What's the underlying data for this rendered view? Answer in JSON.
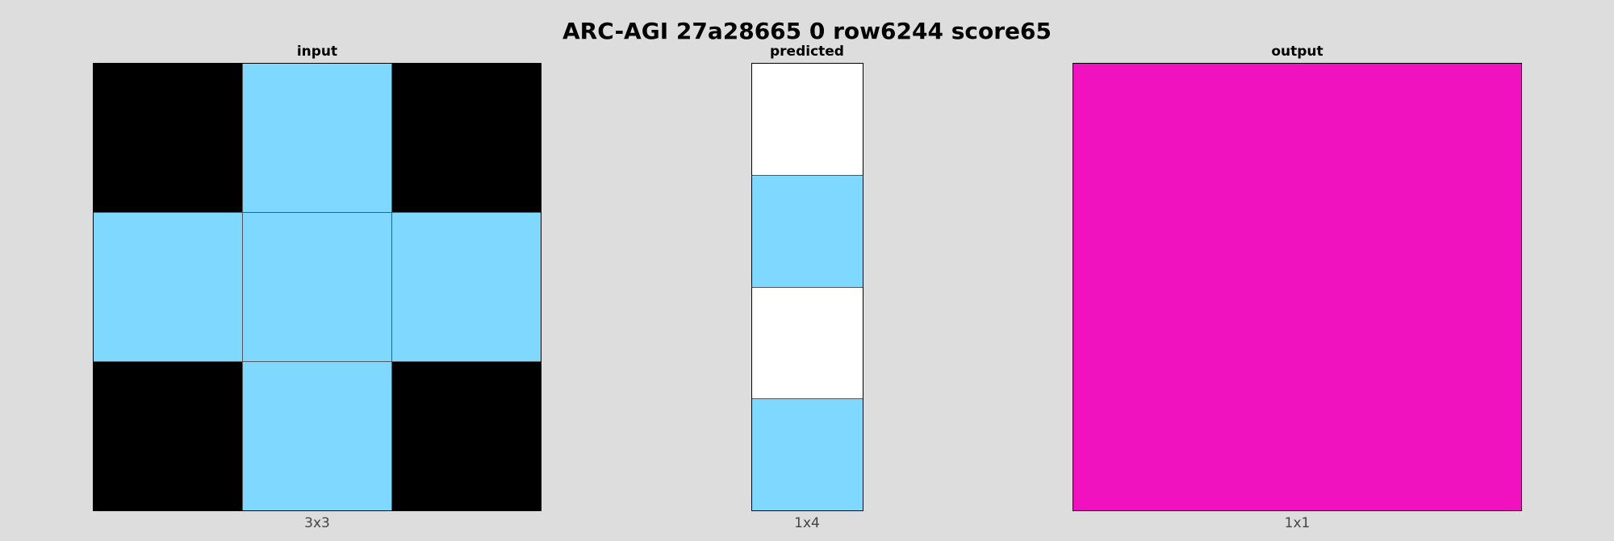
{
  "title": "ARC-AGI 27a28665 0 row6244 score65",
  "colors": {
    "black": "#000000",
    "lightblue": "#7fd8ff",
    "white": "#ffffff",
    "magenta": "#f012be"
  },
  "panels": [
    {
      "key": "input",
      "label": "input",
      "size_label": "3x3",
      "cols": 3,
      "rows": 3,
      "cells": [
        [
          "black",
          "lightblue",
          "black"
        ],
        [
          "lightblue",
          "lightblue",
          "lightblue"
        ],
        [
          "black",
          "lightblue",
          "black"
        ]
      ]
    },
    {
      "key": "predicted",
      "label": "predicted",
      "size_label": "1x4",
      "cols": 1,
      "rows": 4,
      "cells": [
        [
          "white"
        ],
        [
          "lightblue"
        ],
        [
          "white"
        ],
        [
          "lightblue"
        ]
      ]
    },
    {
      "key": "output",
      "label": "output",
      "size_label": "1x1",
      "cols": 1,
      "rows": 1,
      "cells": [
        [
          "magenta"
        ]
      ]
    }
  ]
}
